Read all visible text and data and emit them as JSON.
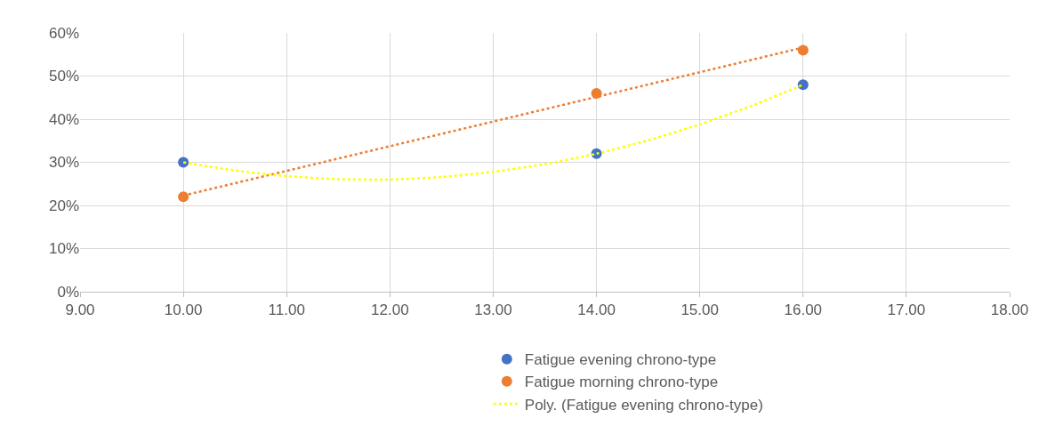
{
  "chart_data": {
    "type": "scatter",
    "xlim": [
      9,
      18
    ],
    "xticks": [
      {
        "value": 9,
        "label": "9.00"
      },
      {
        "value": 10,
        "label": "10.00"
      },
      {
        "value": 11,
        "label": "11.00"
      },
      {
        "value": 12,
        "label": "12.00"
      },
      {
        "value": 13,
        "label": "13.00"
      },
      {
        "value": 14,
        "label": "14.00"
      },
      {
        "value": 15,
        "label": "15.00"
      },
      {
        "value": 16,
        "label": "16.00"
      },
      {
        "value": 17,
        "label": "17.00"
      },
      {
        "value": 18,
        "label": "18.00"
      }
    ],
    "ylim": [
      0,
      60
    ],
    "yticks": [
      {
        "value": 0,
        "label": "0%"
      },
      {
        "value": 10,
        "label": "10%"
      },
      {
        "value": 20,
        "label": "20%"
      },
      {
        "value": 30,
        "label": "30%"
      },
      {
        "value": 40,
        "label": "40%"
      },
      {
        "value": 50,
        "label": "50%"
      },
      {
        "value": 60,
        "label": "60%"
      }
    ],
    "grid": true,
    "legend": "bottom",
    "series": [
      {
        "name": "Fatigue evening chrono-type",
        "type": "scatter",
        "marker": "circle",
        "color": "#4472c4",
        "x": [
          10,
          14,
          16
        ],
        "values": [
          30,
          32,
          48
        ]
      },
      {
        "name": "Fatigue morning chrono-type",
        "type": "scatter",
        "marker": "circle",
        "color": "#ed7d31",
        "x": [
          10,
          14,
          16
        ],
        "values": [
          22,
          46,
          56
        ]
      },
      {
        "type": "line",
        "line_style": "dotted",
        "marker": "none",
        "color": "#ed7d31",
        "x": [
          10,
          16
        ],
        "values": [
          22.3,
          56.6
        ]
      },
      {
        "name": "Poly. (Fatigue evening chrono-type)",
        "type": "line",
        "line_style": "dotted",
        "marker": "none",
        "color": "#ffff00",
        "x": [
          10,
          10.5,
          11,
          11.5,
          12,
          12.5,
          13,
          13.5,
          14,
          14.5,
          15,
          15.5,
          16
        ],
        "values": [
          30,
          28.1,
          26.8,
          26.1,
          26,
          26.6,
          27.8,
          29.6,
          32,
          35.1,
          38.8,
          43.1,
          48
        ]
      }
    ]
  }
}
